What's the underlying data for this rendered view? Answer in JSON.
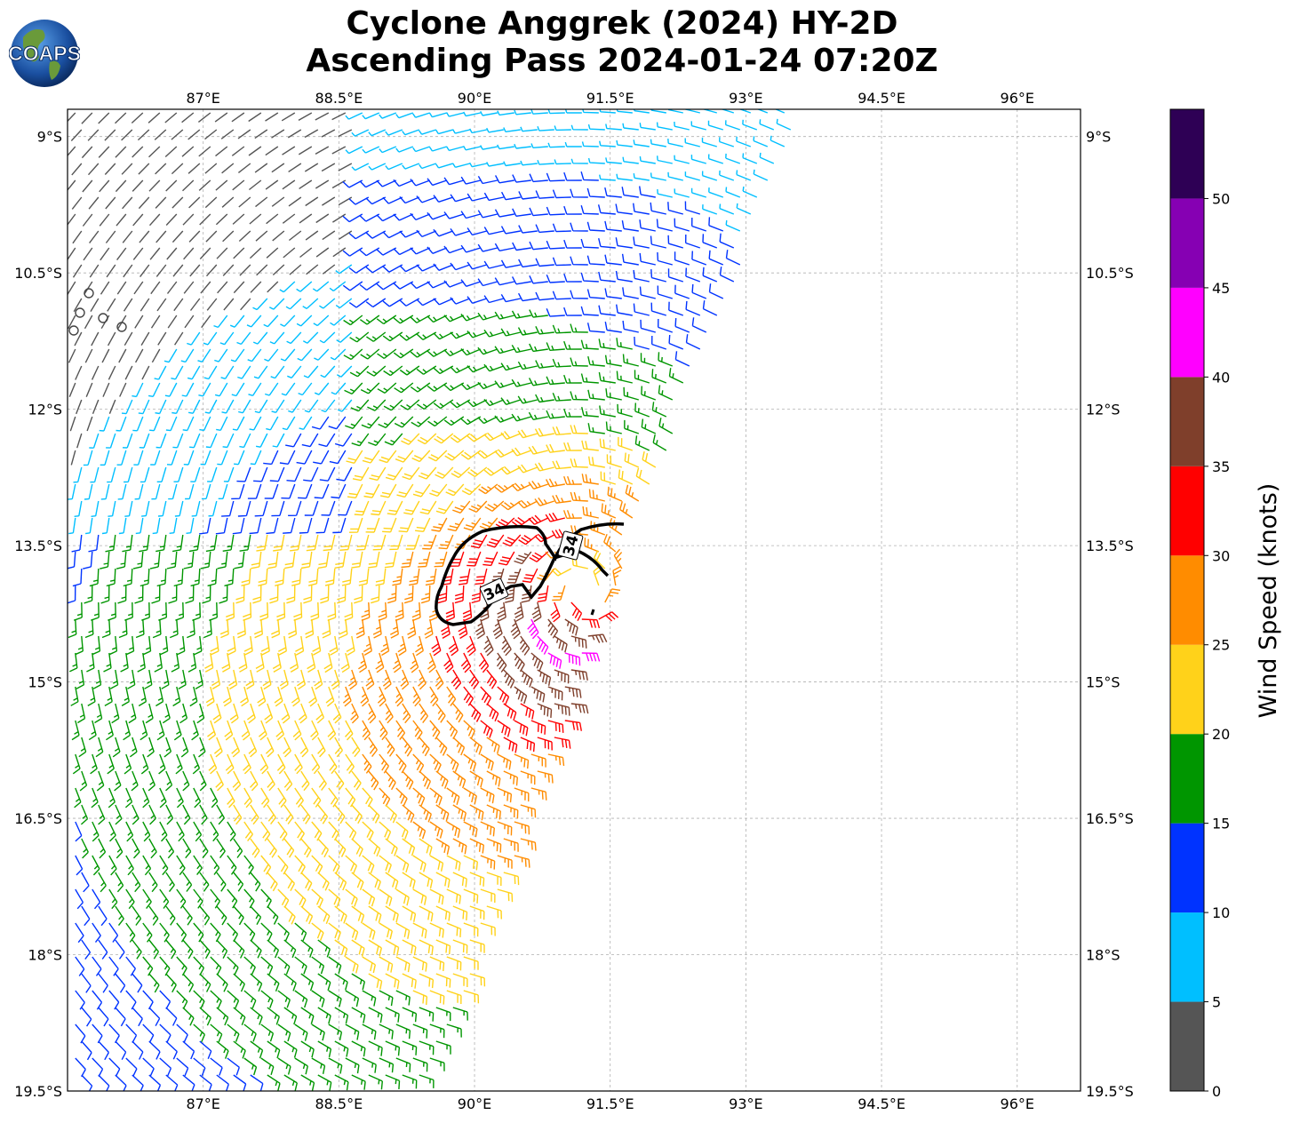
{
  "header": {
    "title_line1": "Cyclone Anggrek (2024) HY-2D",
    "title_line2": "Ascending Pass 2024-01-24 07:20Z",
    "logo_text": "COAPS"
  },
  "map": {
    "lon_ticks": [
      "87°E",
      "88.5°E",
      "90°E",
      "91.5°E",
      "93°E",
      "94.5°E",
      "96°E"
    ],
    "lat_ticks": [
      "9°S",
      "10.5°S",
      "12°S",
      "13.5°S",
      "15°S",
      "16.5°S",
      "18°S",
      "19.5°S"
    ],
    "lon_range": [
      85.5,
      96.7
    ],
    "lat_range": [
      -19.5,
      -8.7
    ],
    "grid": true,
    "center": {
      "lon": 91.2,
      "lat": -14.0
    },
    "contour_label": "34",
    "contour_labels": [
      "34",
      "34"
    ]
  },
  "colorbar": {
    "title": "Wind Speed (knots)",
    "bounds": [
      0,
      5,
      10,
      15,
      20,
      25,
      30,
      35,
      40,
      45,
      50,
      55
    ],
    "labels": [
      "0",
      "5",
      "10",
      "15",
      "20",
      "25",
      "30",
      "35",
      "40",
      "45",
      "50"
    ],
    "colors": [
      "#555555",
      "#00bfff",
      "#0033ff",
      "#009600",
      "#ffd21a",
      "#ff8c00",
      "#ff0000",
      "#7f3f2b",
      "#ff00ff",
      "#8600b3",
      "#2e0055"
    ]
  }
}
